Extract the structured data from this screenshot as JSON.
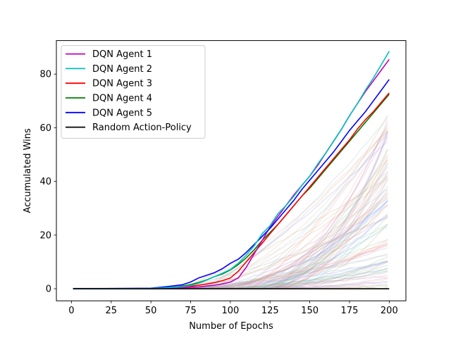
{
  "chart_data": {
    "type": "line",
    "title": "",
    "xlabel": "Number of Epochs",
    "ylabel": "Accumulated Wins",
    "xlim": [
      -9.5,
      210.5
    ],
    "ylim": [
      -4.5,
      92.5
    ],
    "xticks": [
      0,
      25,
      50,
      75,
      100,
      125,
      150,
      175,
      200
    ],
    "yticks": [
      0,
      20,
      40,
      60,
      80
    ],
    "grid": false,
    "legend_position": "top-left",
    "series": [
      {
        "name": "DQN Agent 1",
        "color": "#bf00bf",
        "x": [
          1,
          50,
          60,
          70,
          80,
          85,
          90,
          95,
          100,
          105,
          110,
          115,
          120,
          125,
          130,
          135,
          140,
          145,
          150,
          155,
          160,
          165,
          170,
          175,
          180,
          185,
          190,
          195,
          200
        ],
        "y": [
          0,
          0,
          0.2,
          0.4,
          0.7,
          1.0,
          1.3,
          1.8,
          2.5,
          4.0,
          8.0,
          13.0,
          18.0,
          23.0,
          27.0,
          31.0,
          35.0,
          38.5,
          42.0,
          46.0,
          50.5,
          55.0,
          59.5,
          64.5,
          69.0,
          73.5,
          77.5,
          81.5,
          85.5
        ]
      },
      {
        "name": "DQN Agent 2",
        "color": "#00bfbf",
        "x": [
          1,
          50,
          60,
          70,
          75,
          80,
          85,
          90,
          95,
          100,
          105,
          110,
          115,
          120,
          125,
          130,
          135,
          140,
          145,
          150,
          155,
          160,
          165,
          170,
          175,
          180,
          185,
          190,
          195,
          200
        ],
        "y": [
          0,
          0.1,
          0.4,
          0.8,
          1.2,
          2.0,
          3.2,
          4.5,
          5.8,
          7.2,
          9.5,
          12.5,
          16.0,
          20.5,
          23.5,
          28.0,
          31.0,
          34.5,
          38.5,
          42.0,
          46.5,
          50.5,
          55.0,
          59.5,
          64.5,
          69.0,
          74.0,
          78.5,
          83.5,
          88.5
        ]
      },
      {
        "name": "DQN Agent 3",
        "color": "#ff0000",
        "x": [
          1,
          50,
          60,
          70,
          75,
          80,
          85,
          90,
          95,
          100,
          105,
          110,
          115,
          120,
          125,
          130,
          135,
          140,
          145,
          150,
          155,
          160,
          165,
          170,
          175,
          180,
          185,
          190,
          195,
          200
        ],
        "y": [
          0.1,
          0.1,
          0.3,
          0.7,
          0.9,
          1.3,
          1.8,
          2.3,
          3.0,
          4.0,
          6.5,
          10.0,
          13.5,
          17.0,
          20.5,
          24.0,
          27.5,
          31.0,
          34.5,
          38.0,
          41.5,
          45.0,
          48.5,
          52.0,
          55.5,
          59.5,
          63.0,
          66.0,
          69.5,
          73.0
        ]
      },
      {
        "name": "DQN Agent 4",
        "color": "#008000",
        "x": [
          1,
          50,
          60,
          70,
          75,
          80,
          85,
          90,
          95,
          100,
          105,
          110,
          115,
          120,
          125,
          130,
          135,
          140,
          145,
          150,
          155,
          160,
          165,
          170,
          175,
          180,
          185,
          190,
          195,
          200
        ],
        "y": [
          0,
          0.1,
          0.4,
          1.0,
          1.5,
          2.3,
          3.3,
          4.5,
          5.5,
          7.0,
          9.0,
          11.5,
          14.5,
          18.0,
          21.0,
          24.0,
          27.5,
          31.0,
          34.5,
          37.5,
          41.0,
          44.5,
          48.0,
          51.5,
          55.0,
          58.5,
          62.0,
          65.5,
          69.0,
          72.5
        ]
      },
      {
        "name": "DQN Agent 5",
        "color": "#0000ff",
        "x": [
          1,
          50,
          60,
          70,
          75,
          80,
          85,
          90,
          95,
          100,
          105,
          110,
          115,
          120,
          125,
          130,
          135,
          140,
          145,
          150,
          155,
          160,
          165,
          170,
          175,
          180,
          185,
          190,
          195,
          200
        ],
        "y": [
          0,
          0.2,
          0.8,
          1.5,
          2.5,
          4.0,
          5.0,
          6.0,
          7.5,
          9.5,
          11.0,
          13.5,
          16.5,
          19.5,
          22.5,
          26.0,
          29.5,
          33.0,
          37.0,
          40.5,
          44.0,
          47.5,
          51.0,
          55.0,
          59.0,
          62.5,
          66.0,
          70.0,
          74.0,
          78.0
        ]
      },
      {
        "name": "Random Action-Policy",
        "color": "#000000",
        "x": [
          1,
          200
        ],
        "y": [
          0,
          0
        ]
      }
    ],
    "background_series_count": 100
  }
}
